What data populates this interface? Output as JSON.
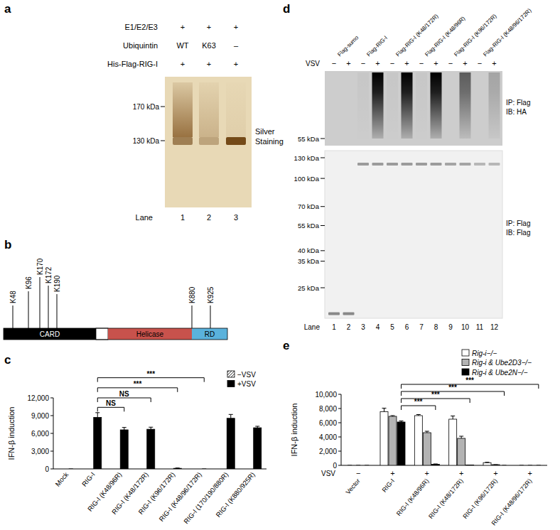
{
  "panel_a": {
    "label": "a",
    "rows": [
      {
        "label": "E1/E2/E3",
        "cells": [
          "+",
          "+",
          "+"
        ]
      },
      {
        "label": "Ubiquintin",
        "cells": [
          "WT",
          "K63",
          "–"
        ]
      },
      {
        "label": "His-Flag-RIG-I",
        "cells": [
          "+",
          "+",
          "+"
        ]
      }
    ],
    "stain": "Silver Staining",
    "markers": [
      {
        "value": 170,
        "label": "170 kDa"
      },
      {
        "value": 130,
        "label": "130 kDa"
      }
    ],
    "lane_title": "Lane",
    "lanes": [
      {
        "number": 1,
        "band": 0.6,
        "smear": 0.8
      },
      {
        "number": 2,
        "band": 0.35,
        "smear": 0.3
      },
      {
        "number": 3,
        "band": 0.95,
        "smear": 0.08
      }
    ]
  },
  "panel_b": {
    "label": "b",
    "domains": [
      {
        "label": "CARD",
        "color": "#000000"
      },
      {
        "label": "Helicase",
        "color": "#c8524c"
      },
      {
        "label": "RD",
        "color": "#5ab2dc"
      }
    ],
    "lysines": [
      "K48",
      "K96",
      "K170",
      "K172",
      "K190",
      "K880",
      "K925"
    ]
  },
  "panel_d": {
    "label": "d",
    "vsv_label": "VSV",
    "lane_title": "Lane",
    "lane_groups": [
      {
        "label": "Flag-sumo",
        "lanes": [
          1,
          2
        ]
      },
      {
        "label": "Flag-RIG-I",
        "lanes": [
          3,
          4
        ]
      },
      {
        "label": "Flag-RIG-I (K48/172R)",
        "lanes": [
          5,
          6
        ]
      },
      {
        "label": "Flag-RIG-I (K48/96R)",
        "lanes": [
          7,
          8
        ]
      },
      {
        "label": "Flag-RIG-I (K96/172R)",
        "lanes": [
          9,
          10
        ]
      },
      {
        "label": "Flag-RIG-I (K48/96/172R)",
        "lanes": [
          11,
          12
        ]
      }
    ],
    "lanes": [
      {
        "number": 1,
        "vsv": "−",
        "ha_smear": 0,
        "flag_kda": 18,
        "flag_signal": 0.55
      },
      {
        "number": 2,
        "vsv": "+",
        "ha_smear": 0,
        "flag_kda": 18,
        "flag_signal": 0.55
      },
      {
        "number": 3,
        "vsv": "−",
        "ha_smear": 0.03,
        "flag_kda": 120,
        "flag_signal": 0.45
      },
      {
        "number": 4,
        "vsv": "+",
        "ha_smear": 1,
        "flag_kda": 120,
        "flag_signal": 0.45
      },
      {
        "number": 5,
        "vsv": "−",
        "ha_smear": 0.03,
        "flag_kda": 120,
        "flag_signal": 0.45
      },
      {
        "number": 6,
        "vsv": "+",
        "ha_smear": 1,
        "flag_kda": 120,
        "flag_signal": 0.45
      },
      {
        "number": 7,
        "vsv": "−",
        "ha_smear": 0.03,
        "flag_kda": 120,
        "flag_signal": 0.45
      },
      {
        "number": 8,
        "vsv": "+",
        "ha_smear": 1,
        "flag_kda": 120,
        "flag_signal": 0.45
      },
      {
        "number": 9,
        "vsv": "−",
        "ha_smear": 0,
        "flag_kda": 120,
        "flag_signal": 0.4
      },
      {
        "number": 10,
        "vsv": "+",
        "ha_smear": 0.55,
        "flag_kda": 120,
        "flag_signal": 0.4
      },
      {
        "number": 11,
        "vsv": "−",
        "ha_smear": 0,
        "flag_kda": 120,
        "flag_signal": 0.3
      },
      {
        "number": 12,
        "vsv": "+",
        "ha_smear": 0.2,
        "flag_kda": 120,
        "flag_signal": 0.3
      }
    ],
    "upper": {
      "markers": [
        {
          "value": 55,
          "label": "55 kDa"
        }
      ],
      "ip": "IP: Flag",
      "ib": "IB: HA"
    },
    "lower": {
      "markers": [
        {
          "value": 130,
          "label": "130 kDa"
        },
        {
          "value": 100,
          "label": "100 kDa"
        },
        {
          "value": 70,
          "label": "70 kDa"
        },
        {
          "value": 55,
          "label": "55 kDa"
        },
        {
          "value": 40,
          "label": "40 kDa"
        },
        {
          "value": 35,
          "label": "35 kDa"
        },
        {
          "value": 25,
          "label": "25 kDa"
        }
      ],
      "ip": "IP: Flag",
      "ib": "IB: Flag"
    }
  },
  "chart_data": [
    {
      "type": "bar",
      "title": "c",
      "y_label": "IFN-β induction",
      "categories": [
        "Mock",
        "RIG-I",
        "RIG-I (K48/96R)",
        "RIG-I (K48/172R)",
        "RIG-I (K96/172R)",
        "RIG-I (K48/96/172R)",
        "RIG-I (170/190/880R)",
        "RIG-I (K880/925R)"
      ],
      "series": [
        {
          "name": "−VSV",
          "color": "#ffffff",
          "line_style": "hatched",
          "values": [
            0,
            0,
            0,
            0,
            0,
            0,
            0,
            0
          ]
        },
        {
          "name": "+VSV",
          "color": "#000000",
          "values": [
            0,
            8700,
            6600,
            6700,
            100,
            0,
            8550,
            6950
          ],
          "errors": [
            0,
            800,
            400,
            350,
            50,
            0,
            650,
            250
          ]
        }
      ],
      "ylim": [
        0,
        12000
      ],
      "yticks": [
        0,
        {
          "value": 3000,
          "label": "3,000"
        },
        {
          "value": 6000,
          "label": "6,000"
        },
        {
          "value": 9000,
          "label": "9,000"
        },
        {
          "value": 12000,
          "label": "12,000"
        }
      ],
      "legend": "top-right",
      "annotations": [
        {
          "from": "RIG-I",
          "to": "RIG-I (K48/96R)",
          "series": "+VSV",
          "label": "NS",
          "y": 10400
        },
        {
          "from": "RIG-I",
          "to": "RIG-I (K48/172R)",
          "series": "+VSV",
          "label": "NS",
          "y": 12000
        },
        {
          "from": "RIG-I",
          "to": "RIG-I (K96/172R)",
          "series": "+VSV",
          "label": "***",
          "y": 13700
        },
        {
          "from": "RIG-I",
          "to": "RIG-I (K48/96/172R)",
          "series": "+VSV",
          "label": "***",
          "y": 15400
        }
      ]
    },
    {
      "type": "bar",
      "title": "e",
      "y_label": "IFN-β induction",
      "categories": [
        "Vector",
        "RIG-I",
        "RIG-I (K48/96R)",
        "RIG-I (K48/172R)",
        "RIG-I (K96/172R)",
        "RIG-I (K48/96/172R)"
      ],
      "condition_label": "VSV",
      "conditions": [
        "−",
        "+",
        "+",
        "+",
        "+",
        "+"
      ],
      "series": [
        {
          "name": "Rig-i−/−",
          "color": "#ffffff",
          "values": [
            0,
            7550,
            7000,
            6500,
            380,
            0
          ],
          "errors": [
            0,
            500,
            150,
            450,
            60,
            0
          ]
        },
        {
          "name": "Rig-i & Ube2D3−/−",
          "color": "#b3b3b3",
          "values": [
            0,
            6900,
            4600,
            3800,
            100,
            0
          ],
          "errors": [
            0,
            100,
            200,
            300,
            0,
            0
          ]
        },
        {
          "name": "Rig-i & Ube2N−/−",
          "color": "#000000",
          "values": [
            0,
            6100,
            150,
            50,
            0,
            0
          ],
          "errors": [
            0,
            150,
            50,
            0,
            0,
            0
          ]
        }
      ],
      "ylim": [
        0,
        10000
      ],
      "yticks": [
        0,
        {
          "value": 2000,
          "label": "2,000"
        },
        {
          "value": 4000,
          "label": "4,000"
        },
        {
          "value": 6000,
          "label": "6,000"
        },
        {
          "value": 8000,
          "label": "8,000"
        },
        {
          "value": 10000,
          "label": "10,000"
        }
      ],
      "legend": "top-right",
      "annotations": [
        {
          "from": "RIG-I",
          "to": "RIG-I (K48/96R)",
          "series": "Rig-i & Ube2N−/−",
          "label": "***",
          "y": 8400
        },
        {
          "from": "RIG-I",
          "to": "RIG-I (K48/172R)",
          "series": "Rig-i & Ube2N−/−",
          "label": "***",
          "y": 9400
        },
        {
          "from": "RIG-I",
          "to": "RIG-I (K96/172R)",
          "series": "Rig-i & Ube2N−/−",
          "label": "***",
          "y": 10400
        },
        {
          "from": "RIG-I",
          "to": "RIG-I (K48/96/172R)",
          "series": "Rig-i & Ube2N−/−",
          "label": "***",
          "y": 11400
        }
      ]
    }
  ]
}
